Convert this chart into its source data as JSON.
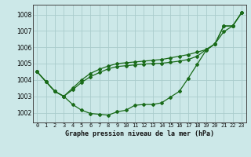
{
  "title": "Graphe pression niveau de la mer (hPa)",
  "bg_color": "#cce8e8",
  "grid_color": "#aacccc",
  "line_color": "#1a6b1a",
  "x_labels": [
    "0",
    "1",
    "2",
    "3",
    "4",
    "5",
    "6",
    "7",
    "8",
    "9",
    "10",
    "11",
    "12",
    "13",
    "14",
    "15",
    "16",
    "17",
    "18",
    "19",
    "20",
    "21",
    "22",
    "23"
  ],
  "ylim": [
    1001.4,
    1008.6
  ],
  "yticks": [
    1002,
    1003,
    1004,
    1005,
    1006,
    1007,
    1008
  ],
  "line1": [
    1004.5,
    1003.9,
    1003.3,
    1003.0,
    1002.5,
    1002.15,
    1001.95,
    1001.9,
    1001.85,
    1002.05,
    1002.15,
    1002.45,
    1002.5,
    1002.5,
    1002.6,
    1002.95,
    1003.3,
    1004.1,
    1004.95,
    1005.8,
    1006.2,
    1006.95,
    1007.3,
    1008.1
  ],
  "line2": [
    1004.5,
    1003.9,
    1003.3,
    1003.0,
    1003.5,
    1004.0,
    1004.4,
    1004.65,
    1004.85,
    1005.0,
    1005.05,
    1005.1,
    1005.15,
    1005.2,
    1005.25,
    1005.35,
    1005.45,
    1005.55,
    1005.7,
    1005.85,
    1006.2,
    1007.3,
    1007.3,
    1008.1
  ],
  "line3": [
    1004.5,
    1003.9,
    1003.3,
    1003.0,
    1003.4,
    1003.85,
    1004.2,
    1004.45,
    1004.68,
    1004.82,
    1004.87,
    1004.92,
    1004.97,
    1005.0,
    1005.02,
    1005.08,
    1005.15,
    1005.25,
    1005.45,
    1005.85,
    1006.2,
    1007.3,
    1007.3,
    1008.1
  ]
}
